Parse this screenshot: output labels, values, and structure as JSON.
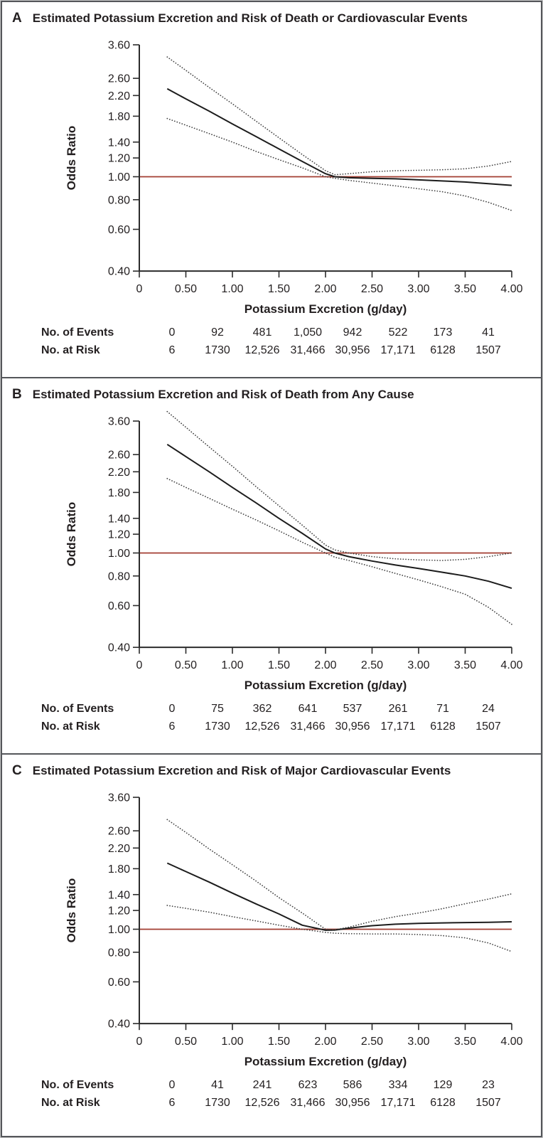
{
  "colors": {
    "text": "#231f20",
    "axis": "#2b2b2b",
    "solid_line": "#1c1c1c",
    "dotted_line": "#424242",
    "reference_line": "#a33d30",
    "border": "#54565a"
  },
  "chart_data": [
    {
      "type": "line",
      "panel": "A",
      "title": "Estimated Potassium Excretion and Risk of Death or Cardiovascular Events",
      "xlabel": "Potassium Excretion (g/day)",
      "ylabel": "Odds Ratio",
      "yscale": "log",
      "ylim": [
        0.4,
        3.6
      ],
      "yticks": [
        3.6,
        2.6,
        2.2,
        1.8,
        1.4,
        1.2,
        1.0,
        0.8,
        0.6,
        0.4
      ],
      "ytick_labels": [
        "3.60",
        "2.60",
        "2.20",
        "1.80",
        "1.40",
        "1.20",
        "1.00",
        "0.80",
        "0.60",
        "0.40"
      ],
      "xticks": [
        0,
        0.5,
        1.0,
        1.5,
        2.0,
        2.5,
        3.0,
        3.5,
        4.0
      ],
      "xtick_labels": [
        "0",
        "0.50",
        "1.00",
        "1.50",
        "2.00",
        "2.50",
        "3.00",
        "3.50",
        "4.00"
      ],
      "reference_line": 1.0,
      "grid": false,
      "legend": "none",
      "x": [
        0.3,
        0.5,
        0.75,
        1.0,
        1.25,
        1.5,
        1.75,
        2.0,
        2.1,
        2.25,
        2.5,
        2.75,
        3.0,
        3.25,
        3.5,
        3.75,
        4.0
      ],
      "series": [
        {
          "name": "odds-ratio",
          "style": "solid",
          "y": [
            2.35,
            2.13,
            1.89,
            1.67,
            1.48,
            1.31,
            1.16,
            1.03,
            1.0,
            0.99,
            0.985,
            0.98,
            0.97,
            0.96,
            0.95,
            0.935,
            0.92
          ]
        },
        {
          "name": "upper-95-ci",
          "style": "dotted",
          "y": [
            3.2,
            2.81,
            2.38,
            2.03,
            1.72,
            1.46,
            1.24,
            1.06,
            1.02,
            1.03,
            1.05,
            1.06,
            1.065,
            1.07,
            1.08,
            1.11,
            1.16
          ]
        },
        {
          "name": "lower-95-ci",
          "style": "dotted",
          "y": [
            1.76,
            1.65,
            1.52,
            1.4,
            1.28,
            1.18,
            1.09,
            1.0,
            0.985,
            0.965,
            0.94,
            0.915,
            0.89,
            0.865,
            0.83,
            0.78,
            0.72
          ]
        }
      ],
      "table": {
        "column_x": [
          0.35,
          0.84,
          1.32,
          1.81,
          2.29,
          2.78,
          3.26,
          3.75
        ],
        "rows": [
          {
            "label": "No. of Events",
            "values": [
              "0",
              "92",
              "481",
              "1,050",
              "942",
              "522",
              "173",
              "41"
            ]
          },
          {
            "label": "No. at Risk",
            "values": [
              "6",
              "1730",
              "12,526",
              "31,466",
              "30,956",
              "17,171",
              "6128",
              "1507"
            ]
          }
        ]
      }
    },
    {
      "type": "line",
      "panel": "B",
      "title": "Estimated Potassium Excretion and Risk of Death from Any Cause",
      "xlabel": "Potassium Excretion (g/day)",
      "ylabel": "Odds Ratio",
      "yscale": "log",
      "ylim": [
        0.4,
        3.6
      ],
      "yticks": [
        3.6,
        2.6,
        2.2,
        1.8,
        1.4,
        1.2,
        1.0,
        0.8,
        0.6,
        0.4
      ],
      "ytick_labels": [
        "3.60",
        "2.60",
        "2.20",
        "1.80",
        "1.40",
        "1.20",
        "1.00",
        "0.80",
        "0.60",
        "0.40"
      ],
      "xticks": [
        0,
        0.5,
        1.0,
        1.5,
        2.0,
        2.5,
        3.0,
        3.5,
        4.0
      ],
      "xtick_labels": [
        "0",
        "0.50",
        "1.00",
        "1.50",
        "2.00",
        "2.50",
        "3.00",
        "3.50",
        "4.00"
      ],
      "reference_line": 1.0,
      "grid": false,
      "legend": "none",
      "x": [
        0.3,
        0.5,
        0.75,
        1.0,
        1.25,
        1.5,
        1.75,
        2.0,
        2.1,
        2.25,
        2.5,
        2.75,
        3.0,
        3.25,
        3.5,
        3.75,
        4.0
      ],
      "series": [
        {
          "name": "odds-ratio",
          "style": "solid",
          "y": [
            2.87,
            2.55,
            2.2,
            1.89,
            1.63,
            1.4,
            1.21,
            1.04,
            1.0,
            0.965,
            0.925,
            0.89,
            0.86,
            0.83,
            0.8,
            0.76,
            0.71
          ]
        },
        {
          "name": "upper-95-ci",
          "style": "dotted",
          "y": [
            3.95,
            3.39,
            2.8,
            2.32,
            1.91,
            1.58,
            1.31,
            1.08,
            1.03,
            1.0,
            0.965,
            0.945,
            0.935,
            0.93,
            0.94,
            0.965,
            1.0
          ]
        },
        {
          "name": "lower-95-ci",
          "style": "dotted",
          "y": [
            2.06,
            1.89,
            1.7,
            1.53,
            1.38,
            1.24,
            1.11,
            1.0,
            0.96,
            0.93,
            0.875,
            0.82,
            0.77,
            0.72,
            0.67,
            0.59,
            0.5
          ]
        }
      ],
      "table": {
        "column_x": [
          0.35,
          0.84,
          1.32,
          1.81,
          2.29,
          2.78,
          3.26,
          3.75
        ],
        "rows": [
          {
            "label": "No. of Events",
            "values": [
              "0",
              "75",
              "362",
              "641",
              "537",
              "261",
              "71",
              "24"
            ]
          },
          {
            "label": "No. at Risk",
            "values": [
              "6",
              "1730",
              "12,526",
              "31,466",
              "30,956",
              "17,171",
              "6128",
              "1507"
            ]
          }
        ]
      }
    },
    {
      "type": "line",
      "panel": "C",
      "title": "Estimated Potassium Excretion and Risk of Major Cardiovascular Events",
      "xlabel": "Potassium Excretion (g/day)",
      "ylabel": "Odds Ratio",
      "yscale": "log",
      "ylim": [
        0.4,
        3.6
      ],
      "yticks": [
        3.6,
        2.6,
        2.2,
        1.8,
        1.4,
        1.2,
        1.0,
        0.8,
        0.6,
        0.4
      ],
      "ytick_labels": [
        "3.60",
        "2.60",
        "2.20",
        "1.80",
        "1.40",
        "1.20",
        "1.00",
        "0.80",
        "0.60",
        "0.40"
      ],
      "xticks": [
        0,
        0.5,
        1.0,
        1.5,
        2.0,
        2.5,
        3.0,
        3.5,
        4.0
      ],
      "xtick_labels": [
        "0",
        "0.50",
        "1.00",
        "1.50",
        "2.00",
        "2.50",
        "3.00",
        "3.50",
        "4.00"
      ],
      "reference_line": 1.0,
      "grid": false,
      "legend": "none",
      "x": [
        0.3,
        0.5,
        0.75,
        1.0,
        1.25,
        1.5,
        1.75,
        2.0,
        2.1,
        2.25,
        2.5,
        2.75,
        3.0,
        3.25,
        3.5,
        3.75,
        4.0
      ],
      "series": [
        {
          "name": "odds-ratio",
          "style": "solid",
          "y": [
            1.9,
            1.75,
            1.58,
            1.42,
            1.28,
            1.16,
            1.04,
            0.99,
            0.992,
            1.01,
            1.035,
            1.05,
            1.058,
            1.063,
            1.067,
            1.07,
            1.075
          ]
        },
        {
          "name": "upper-95-ci",
          "style": "dotted",
          "y": [
            2.9,
            2.56,
            2.18,
            1.87,
            1.6,
            1.36,
            1.17,
            1.0,
            0.995,
            1.02,
            1.08,
            1.13,
            1.17,
            1.22,
            1.28,
            1.34,
            1.41
          ]
        },
        {
          "name": "lower-95-ci",
          "style": "dotted",
          "y": [
            1.26,
            1.225,
            1.18,
            1.13,
            1.085,
            1.04,
            1.0,
            0.97,
            0.962,
            0.958,
            0.955,
            0.955,
            0.95,
            0.94,
            0.92,
            0.875,
            0.805
          ]
        }
      ],
      "table": {
        "column_x": [
          0.35,
          0.84,
          1.32,
          1.81,
          2.29,
          2.78,
          3.26,
          3.75
        ],
        "rows": [
          {
            "label": "No. of Events",
            "values": [
              "0",
              "41",
              "241",
              "623",
              "586",
              "334",
              "129",
              "23"
            ]
          },
          {
            "label": "No. at Risk",
            "values": [
              "6",
              "1730",
              "12,526",
              "31,466",
              "30,956",
              "17,171",
              "6128",
              "1507"
            ]
          }
        ]
      }
    }
  ]
}
